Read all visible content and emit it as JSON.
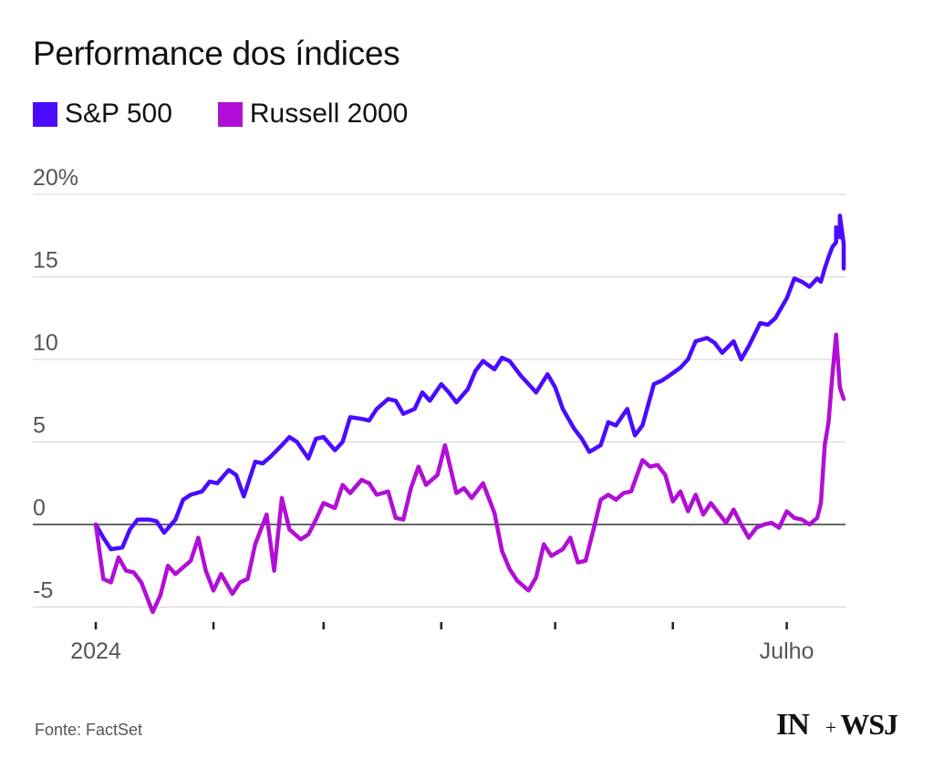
{
  "chart_data": {
    "type": "line",
    "title": "Performance dos índices",
    "xlabel": "",
    "ylabel": "",
    "ylim": [
      -6,
      20
    ],
    "yticks": [
      20,
      15,
      10,
      5,
      0,
      -5
    ],
    "ytick_labels": [
      "20%",
      "15",
      "10",
      "5",
      "0",
      "-5"
    ],
    "grid": true,
    "legend_position": "top-left",
    "x_range": [
      "2024-01-01",
      "2024-07-16"
    ],
    "x_tick_dates": [
      "2024-01-01",
      "2024-02-01",
      "2024-03-01",
      "2024-04-01",
      "2024-05-01",
      "2024-06-01",
      "2024-07-01"
    ],
    "x_tick_labels": [
      {
        "date": "2024-01-01",
        "label": "2024"
      },
      {
        "date": "2024-07-01",
        "label": "Julho"
      }
    ],
    "series": [
      {
        "name": "S&P 500",
        "color": "#4a0bff",
        "points": [
          [
            "2024-01-01",
            0.0
          ],
          [
            "2024-01-03",
            -0.8
          ],
          [
            "2024-01-05",
            -1.5
          ],
          [
            "2024-01-08",
            -1.4
          ],
          [
            "2024-01-10",
            -0.3
          ],
          [
            "2024-01-12",
            0.3
          ],
          [
            "2024-01-15",
            0.3
          ],
          [
            "2024-01-17",
            0.2
          ],
          [
            "2024-01-19",
            -0.5
          ],
          [
            "2024-01-22",
            0.3
          ],
          [
            "2024-01-24",
            1.5
          ],
          [
            "2024-01-26",
            1.8
          ],
          [
            "2024-01-29",
            2.0
          ],
          [
            "2024-01-31",
            2.6
          ],
          [
            "2024-02-02",
            2.5
          ],
          [
            "2024-02-05",
            3.3
          ],
          [
            "2024-02-07",
            3.0
          ],
          [
            "2024-02-09",
            1.7
          ],
          [
            "2024-02-12",
            3.8
          ],
          [
            "2024-02-14",
            3.7
          ],
          [
            "2024-02-16",
            4.1
          ],
          [
            "2024-02-19",
            4.8
          ],
          [
            "2024-02-21",
            5.3
          ],
          [
            "2024-02-23",
            5.0
          ],
          [
            "2024-02-26",
            4.0
          ],
          [
            "2024-02-28",
            5.2
          ],
          [
            "2024-03-01",
            5.3
          ],
          [
            "2024-03-04",
            4.5
          ],
          [
            "2024-03-06",
            5.0
          ],
          [
            "2024-03-08",
            6.5
          ],
          [
            "2024-03-11",
            6.4
          ],
          [
            "2024-03-13",
            6.3
          ],
          [
            "2024-03-15",
            7.0
          ],
          [
            "2024-03-18",
            7.6
          ],
          [
            "2024-03-20",
            7.5
          ],
          [
            "2024-03-22",
            6.7
          ],
          [
            "2024-03-25",
            7.0
          ],
          [
            "2024-03-27",
            8.0
          ],
          [
            "2024-03-29",
            7.5
          ],
          [
            "2024-04-01",
            8.5
          ],
          [
            "2024-04-03",
            8.0
          ],
          [
            "2024-04-05",
            7.4
          ],
          [
            "2024-04-08",
            8.2
          ],
          [
            "2024-04-10",
            9.3
          ],
          [
            "2024-04-12",
            9.9
          ],
          [
            "2024-04-15",
            9.4
          ],
          [
            "2024-04-17",
            10.1
          ],
          [
            "2024-04-19",
            9.9
          ],
          [
            "2024-04-22",
            9.0
          ],
          [
            "2024-04-24",
            8.5
          ],
          [
            "2024-04-26",
            8.0
          ],
          [
            "2024-04-29",
            9.1
          ],
          [
            "2024-05-01",
            8.3
          ],
          [
            "2024-05-03",
            7.0
          ],
          [
            "2024-05-06",
            5.8
          ],
          [
            "2024-05-08",
            5.2
          ],
          [
            "2024-05-10",
            4.4
          ],
          [
            "2024-05-13",
            4.8
          ],
          [
            "2024-05-15",
            6.2
          ],
          [
            "2024-05-17",
            6.0
          ],
          [
            "2024-05-20",
            7.0
          ],
          [
            "2024-05-22",
            5.4
          ],
          [
            "2024-05-24",
            6.0
          ],
          [
            "2024-05-27",
            8.5
          ],
          [
            "2024-05-29",
            8.7
          ],
          [
            "2024-05-31",
            9.0
          ],
          [
            "2024-06-03",
            9.5
          ],
          [
            "2024-06-05",
            10.0
          ],
          [
            "2024-06-07",
            11.1
          ],
          [
            "2024-06-10",
            11.3
          ],
          [
            "2024-06-12",
            11.0
          ],
          [
            "2024-06-14",
            10.4
          ],
          [
            "2024-06-17",
            11.1
          ],
          [
            "2024-06-19",
            10.0
          ],
          [
            "2024-06-21",
            10.8
          ],
          [
            "2024-06-24",
            12.2
          ],
          [
            "2024-06-26",
            12.1
          ],
          [
            "2024-06-28",
            12.5
          ],
          [
            "2024-07-01",
            13.7
          ],
          [
            "2024-07-03",
            14.9
          ],
          [
            "2024-07-05",
            14.7
          ],
          [
            "2024-07-07",
            14.4
          ],
          [
            "2024-07-09",
            14.9
          ],
          [
            "2024-07-10",
            14.7
          ],
          [
            "2024-07-11",
            15.5
          ],
          [
            "2024-07-12",
            16.2
          ],
          [
            "2024-07-13",
            16.8
          ],
          [
            "2024-07-14",
            17.1
          ],
          [
            "2024-07-14",
            18.0
          ],
          [
            "2024-07-15",
            17.4
          ],
          [
            "2024-07-15",
            18.7
          ],
          [
            "2024-07-16",
            17.0
          ],
          [
            "2024-07-16",
            15.5
          ]
        ]
      },
      {
        "name": "Russell 2000",
        "color": "#b10ed6",
        "points": [
          [
            "2024-01-01",
            0.0
          ],
          [
            "2024-01-03",
            -3.3
          ],
          [
            "2024-01-05",
            -3.5
          ],
          [
            "2024-01-07",
            -2.0
          ],
          [
            "2024-01-09",
            -2.8
          ],
          [
            "2024-01-11",
            -2.9
          ],
          [
            "2024-01-13",
            -3.5
          ],
          [
            "2024-01-16",
            -5.3
          ],
          [
            "2024-01-18",
            -4.3
          ],
          [
            "2024-01-20",
            -2.5
          ],
          [
            "2024-01-22",
            -3.0
          ],
          [
            "2024-01-24",
            -2.6
          ],
          [
            "2024-01-26",
            -2.2
          ],
          [
            "2024-01-28",
            -0.8
          ],
          [
            "2024-01-30",
            -2.8
          ],
          [
            "2024-02-01",
            -4.0
          ],
          [
            "2024-02-03",
            -3.0
          ],
          [
            "2024-02-06",
            -4.2
          ],
          [
            "2024-02-08",
            -3.5
          ],
          [
            "2024-02-10",
            -3.3
          ],
          [
            "2024-02-12",
            -1.2
          ],
          [
            "2024-02-15",
            0.6
          ],
          [
            "2024-02-17",
            -2.8
          ],
          [
            "2024-02-19",
            1.6
          ],
          [
            "2024-02-21",
            -0.3
          ],
          [
            "2024-02-24",
            -0.9
          ],
          [
            "2024-02-26",
            -0.6
          ],
          [
            "2024-02-28",
            0.3
          ],
          [
            "2024-03-01",
            1.3
          ],
          [
            "2024-03-04",
            1.0
          ],
          [
            "2024-03-06",
            2.4
          ],
          [
            "2024-03-08",
            1.9
          ],
          [
            "2024-03-11",
            2.7
          ],
          [
            "2024-03-13",
            2.5
          ],
          [
            "2024-03-15",
            1.8
          ],
          [
            "2024-03-18",
            2.0
          ],
          [
            "2024-03-20",
            0.4
          ],
          [
            "2024-03-22",
            0.3
          ],
          [
            "2024-03-24",
            2.2
          ],
          [
            "2024-03-26",
            3.5
          ],
          [
            "2024-03-28",
            2.4
          ],
          [
            "2024-03-31",
            3.0
          ],
          [
            "2024-04-02",
            4.8
          ],
          [
            "2024-04-05",
            1.9
          ],
          [
            "2024-04-07",
            2.2
          ],
          [
            "2024-04-09",
            1.6
          ],
          [
            "2024-04-12",
            2.5
          ],
          [
            "2024-04-15",
            0.7
          ],
          [
            "2024-04-17",
            -1.6
          ],
          [
            "2024-04-19",
            -2.7
          ],
          [
            "2024-04-21",
            -3.4
          ],
          [
            "2024-04-24",
            -4.0
          ],
          [
            "2024-04-26",
            -3.2
          ],
          [
            "2024-04-28",
            -1.2
          ],
          [
            "2024-04-30",
            -1.9
          ],
          [
            "2024-05-03",
            -1.5
          ],
          [
            "2024-05-05",
            -0.8
          ],
          [
            "2024-05-07",
            -2.3
          ],
          [
            "2024-05-09",
            -2.2
          ],
          [
            "2024-05-11",
            -0.4
          ],
          [
            "2024-05-13",
            1.5
          ],
          [
            "2024-05-15",
            1.8
          ],
          [
            "2024-05-17",
            1.5
          ],
          [
            "2024-05-19",
            1.9
          ],
          [
            "2024-05-21",
            2.0
          ],
          [
            "2024-05-24",
            3.9
          ],
          [
            "2024-05-26",
            3.5
          ],
          [
            "2024-05-28",
            3.6
          ],
          [
            "2024-05-30",
            3.0
          ],
          [
            "2024-06-01",
            1.4
          ],
          [
            "2024-06-03",
            2.0
          ],
          [
            "2024-06-05",
            0.8
          ],
          [
            "2024-06-07",
            1.8
          ],
          [
            "2024-06-09",
            0.6
          ],
          [
            "2024-06-11",
            1.3
          ],
          [
            "2024-06-13",
            0.7
          ],
          [
            "2024-06-15",
            0.1
          ],
          [
            "2024-06-17",
            0.9
          ],
          [
            "2024-06-19",
            0.0
          ],
          [
            "2024-06-21",
            -0.8
          ],
          [
            "2024-06-23",
            -0.2
          ],
          [
            "2024-06-25",
            0.0
          ],
          [
            "2024-06-27",
            0.1
          ],
          [
            "2024-06-29",
            -0.2
          ],
          [
            "2024-07-01",
            0.8
          ],
          [
            "2024-07-03",
            0.4
          ],
          [
            "2024-07-05",
            0.3
          ],
          [
            "2024-07-07",
            0.0
          ],
          [
            "2024-07-09",
            0.4
          ],
          [
            "2024-07-10",
            1.3
          ],
          [
            "2024-07-11",
            4.8
          ],
          [
            "2024-07-12",
            6.2
          ],
          [
            "2024-07-13",
            9.0
          ],
          [
            "2024-07-14",
            11.5
          ],
          [
            "2024-07-15",
            8.3
          ],
          [
            "2024-07-16",
            7.6
          ]
        ]
      }
    ],
    "zero_line": true
  },
  "legend": [
    {
      "name": "S&P 500",
      "color": "#4a0bff"
    },
    {
      "name": "Russell 2000",
      "color": "#b10ed6"
    }
  ],
  "footer": {
    "source": "Fonte: FactSet",
    "logo_left": "IN",
    "logo_plus": "+",
    "logo_right": "WSJ"
  }
}
